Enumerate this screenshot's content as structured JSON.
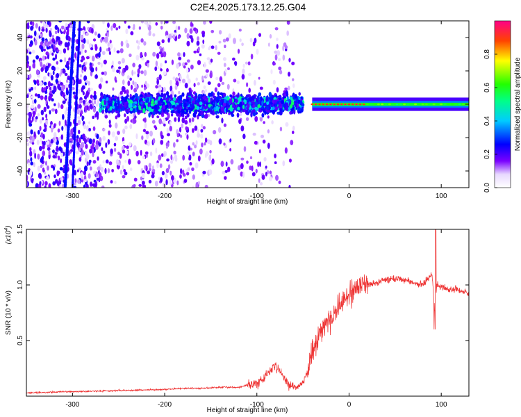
{
  "title": "C2E4.2025.173.12.25.G04",
  "chart_data": [
    {
      "type": "heatmap",
      "xlabel": "Height of straight line (km)",
      "ylabel": "Frequency (Hz)",
      "xlim": [
        -350,
        130
      ],
      "ylim": [
        -50,
        50
      ],
      "xticks": [
        -300,
        -200,
        -100,
        0,
        100
      ],
      "yticks": [
        -40,
        -20,
        0,
        20,
        40
      ],
      "colorbar": {
        "label": "Normalized spectral amplitude",
        "ticks": [
          0.0,
          0.2,
          0.4,
          0.6,
          0.8
        ],
        "range": [
          0,
          1
        ]
      },
      "features": {
        "tone_band_center_hz": 0,
        "scatter_band": {
          "x_from": -270,
          "x_to": -50,
          "half_width_hz": 10
        },
        "steady_tone": {
          "x_from": -40,
          "x_to": 130
        },
        "diagonal_trace": {
          "x_start": -308,
          "y_start": -50,
          "x_end": -298,
          "y_end": 50
        },
        "second_diagonal": {
          "x_start": -300,
          "y_start": -50,
          "x_end": -292,
          "y_end": 50
        }
      }
    },
    {
      "type": "line",
      "xlabel": "Height of straight line (km)",
      "ylabel": "SNR (10 * v/v)",
      "y_multiplier_label": "(x10",
      "y_multiplier_exp": "4",
      "xlim": [
        -350,
        130
      ],
      "ylim": [
        0,
        1.5
      ],
      "xticks": [
        -300,
        -200,
        -100,
        0,
        100
      ],
      "yticks": [
        "0.5",
        "1.0",
        "1.5"
      ],
      "series": [
        {
          "color": "#ee3333",
          "x": [
            -350,
            -300,
            -250,
            -200,
            -180,
            -160,
            -140,
            -120,
            -110,
            -100,
            -95,
            -90,
            -85,
            -80,
            -75,
            -70,
            -65,
            -60,
            -55,
            -50,
            -45,
            -40,
            -35,
            -30,
            -25,
            -20,
            -15,
            -10,
            -5,
            0,
            5,
            10,
            15,
            20,
            25,
            30,
            40,
            50,
            60,
            70,
            80,
            85,
            90,
            93,
            95,
            100,
            110,
            120,
            130
          ],
          "y": [
            0.03,
            0.04,
            0.05,
            0.06,
            0.07,
            0.07,
            0.08,
            0.08,
            0.1,
            0.12,
            0.15,
            0.18,
            0.23,
            0.28,
            0.22,
            0.15,
            0.1,
            0.08,
            0.08,
            0.12,
            0.22,
            0.38,
            0.5,
            0.6,
            0.65,
            0.7,
            0.75,
            0.82,
            0.88,
            0.92,
            0.95,
            1.0,
            1.05,
            1.02,
            1.0,
            1.02,
            1.05,
            1.06,
            1.05,
            1.02,
            1.0,
            1.05,
            1.1,
            0.75,
            1.0,
            0.98,
            0.96,
            0.95,
            0.93
          ]
        }
      ]
    }
  ]
}
